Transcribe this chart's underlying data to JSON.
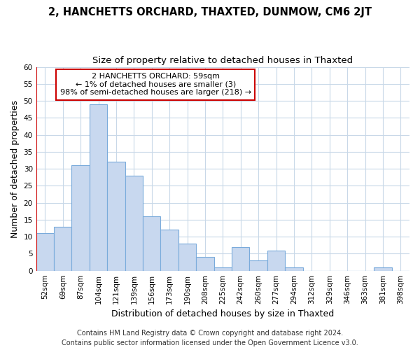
{
  "title": "2, HANCHETTS ORCHARD, THAXTED, DUNMOW, CM6 2JT",
  "subtitle": "Size of property relative to detached houses in Thaxted",
  "xlabel": "Distribution of detached houses by size in Thaxted",
  "ylabel": "Number of detached properties",
  "categories": [
    "52sqm",
    "69sqm",
    "87sqm",
    "104sqm",
    "121sqm",
    "139sqm",
    "156sqm",
    "173sqm",
    "190sqm",
    "208sqm",
    "225sqm",
    "242sqm",
    "260sqm",
    "277sqm",
    "294sqm",
    "312sqm",
    "329sqm",
    "346sqm",
    "363sqm",
    "381sqm",
    "398sqm"
  ],
  "values": [
    11,
    13,
    31,
    49,
    32,
    28,
    16,
    12,
    8,
    4,
    1,
    7,
    3,
    6,
    1,
    0,
    0,
    0,
    0,
    1,
    0
  ],
  "bar_color": "#c8d8ef",
  "bar_edge_color": "#7aabdb",
  "annotation_text": "2 HANCHETTS ORCHARD: 59sqm\n← 1% of detached houses are smaller (3)\n98% of semi-detached houses are larger (218) →",
  "annotation_box_color": "#ffffff",
  "annotation_box_edge": "#cc0000",
  "vline_color": "#cc0000",
  "ylim": [
    0,
    60
  ],
  "yticks": [
    0,
    5,
    10,
    15,
    20,
    25,
    30,
    35,
    40,
    45,
    50,
    55,
    60
  ],
  "footer1": "Contains HM Land Registry data © Crown copyright and database right 2024.",
  "footer2": "Contains public sector information licensed under the Open Government Licence v3.0.",
  "bg_color": "#ffffff",
  "grid_color": "#c8d8e8",
  "title_fontsize": 10.5,
  "subtitle_fontsize": 9.5,
  "axis_label_fontsize": 9,
  "tick_fontsize": 7.5,
  "annotation_fontsize": 8,
  "footer_fontsize": 7
}
